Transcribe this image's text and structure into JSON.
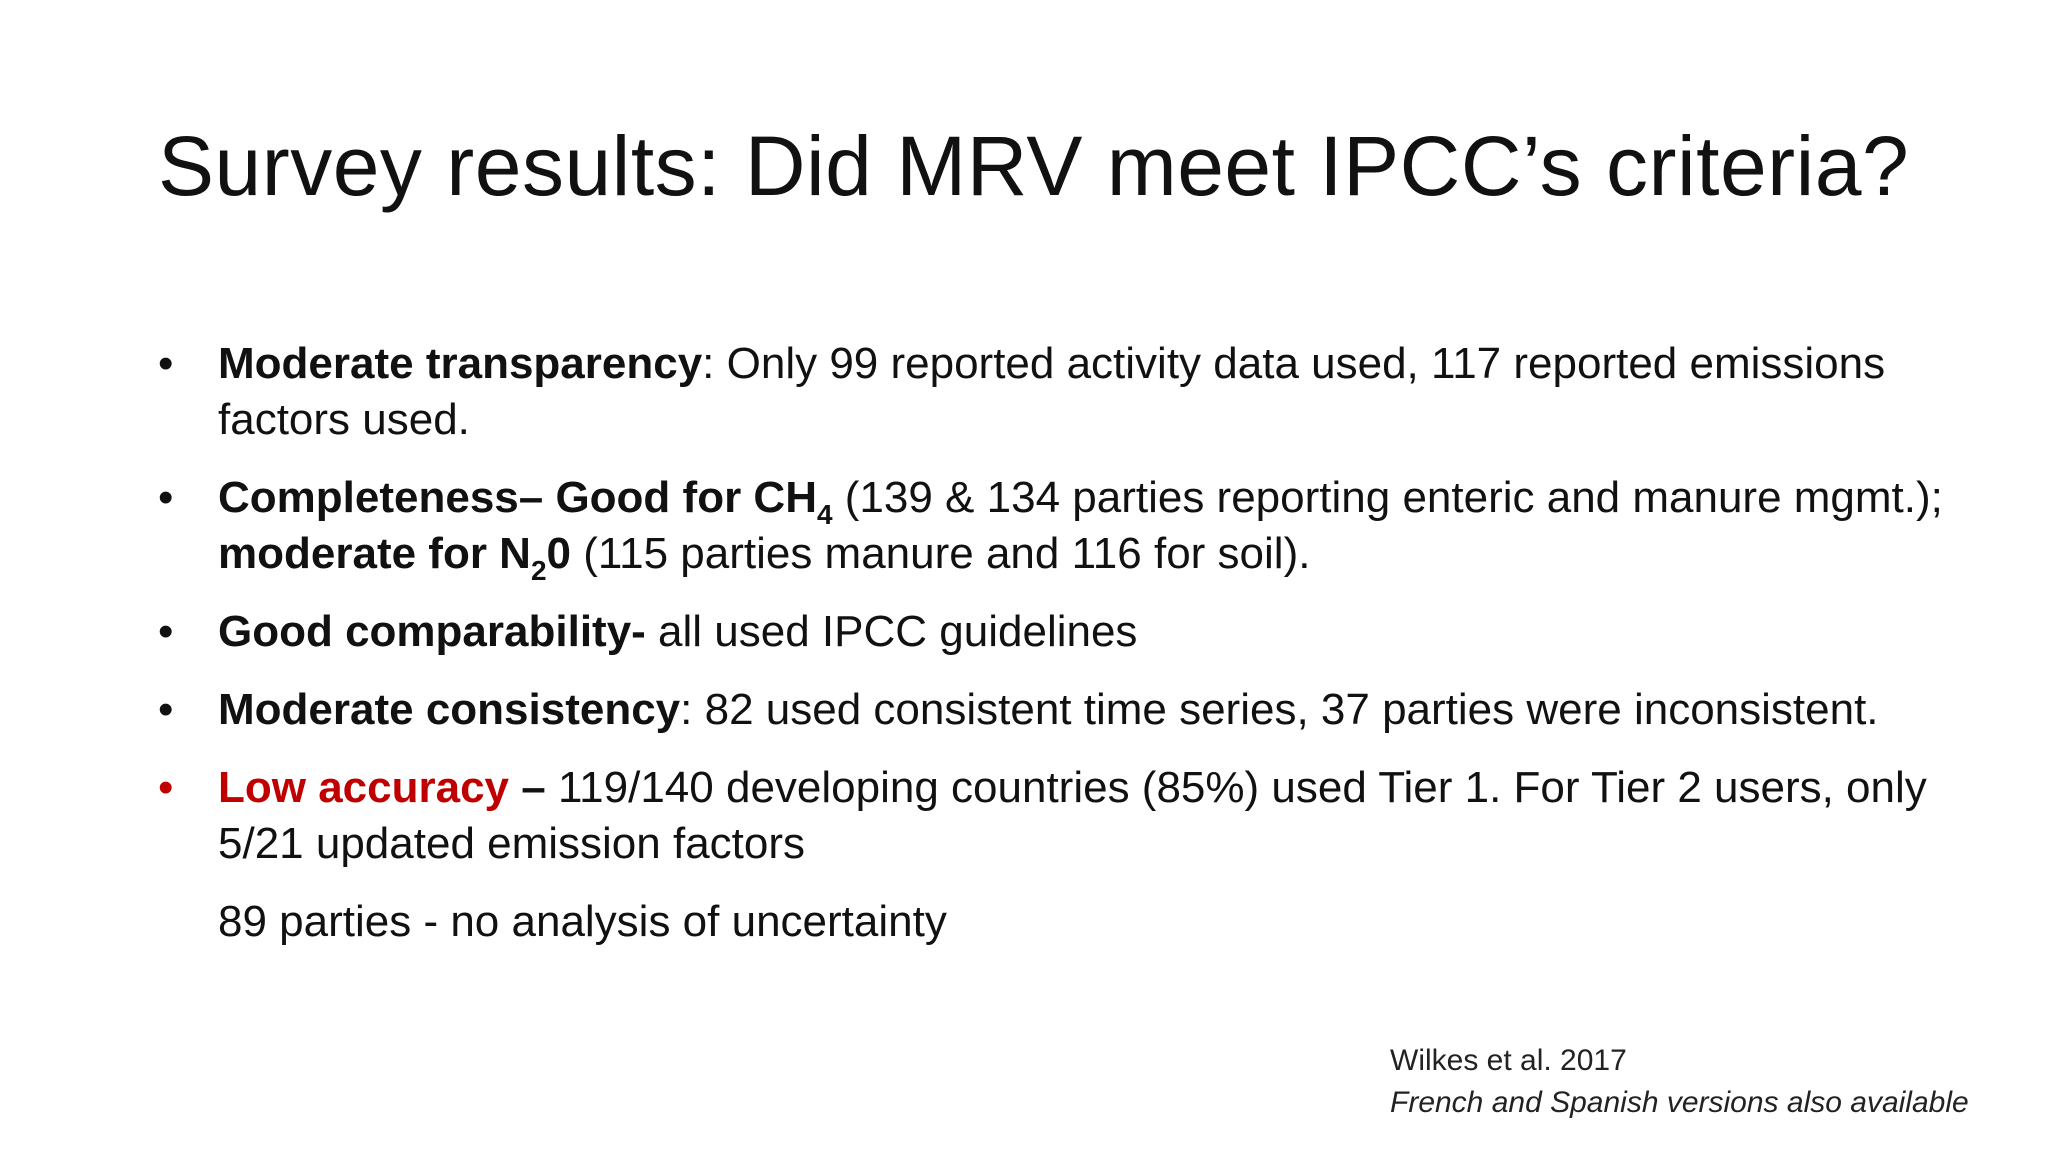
{
  "title": "Survey results: Did MRV meet IPCC’s criteria?",
  "bullets": [
    {
      "bold": "Moderate transparency",
      "text": ": Only 99 reported activity data used, 117 reported emissions factors used."
    },
    {
      "bold": "Completeness– Good for CH",
      "sub1": "4",
      "text1": " (139 & 134 parties reporting enteric and manure mgmt.); ",
      "bold2": "moderate for N",
      "sub2": "2",
      "bold2b": "0",
      "text2": " (115 parties manure and 116 for soil)."
    },
    {
      "bold": "Good comparability-",
      "text": " all used IPCC guidelines"
    },
    {
      "bold": "Moderate consistency",
      "text": ": 82 used consistent time series, 37 parties were inconsistent."
    },
    {
      "bold": "Low accuracy",
      "bold_dash": " –",
      "text": " 119/140 developing countries (85%) used Tier 1. For Tier 2 users, only 5/21 updated emission factors"
    }
  ],
  "extra_line": "89 parties - no analysis of uncertainty",
  "bullet_symbol": "•",
  "citation": {
    "author": "Wilkes et al. 2017",
    "note": "French and Spanish versions also available"
  },
  "colors": {
    "accent_red": "#c00000",
    "text": "#111111"
  }
}
